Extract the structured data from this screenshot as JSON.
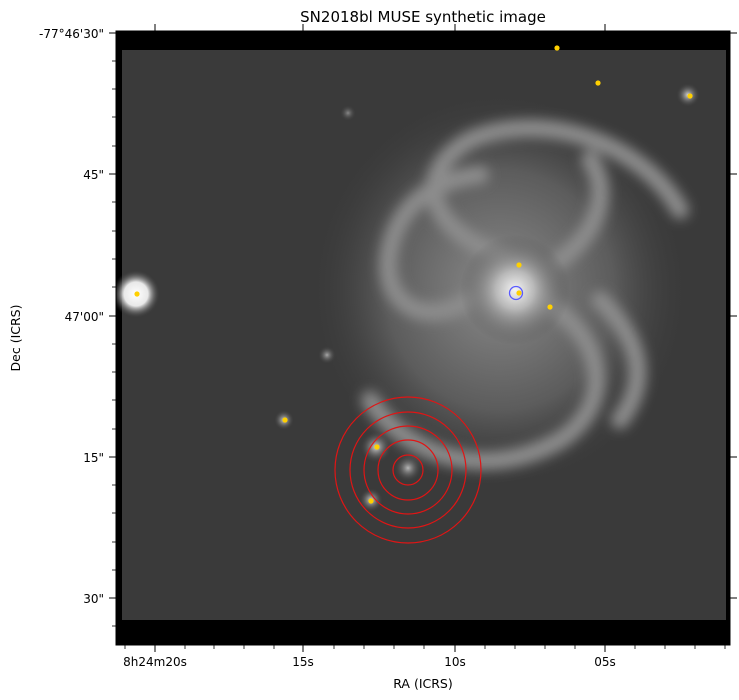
{
  "figure": {
    "title": "SN2018bl MUSE synthetic image",
    "xlabel": "RA (ICRS)",
    "ylabel": "Dec (ICRS)"
  },
  "axes": {
    "x_ticks": [
      {
        "label": "8h24m20s"
      },
      {
        "label": "15s"
      },
      {
        "label": "10s"
      },
      {
        "label": "05s"
      }
    ],
    "y_ticks": [
      {
        "label": "-77°46'30\""
      },
      {
        "label": "45\""
      },
      {
        "label": "47'00\""
      },
      {
        "label": "15\""
      },
      {
        "label": "30\""
      }
    ]
  },
  "image": {
    "colormap": "grayscale",
    "description_color_background": "#3a3a3a"
  },
  "markers": {
    "point_color": "#ffd000",
    "circle_color": "#e01515",
    "host_circle_color": "#5a5aff",
    "aperture_count": 5
  }
}
